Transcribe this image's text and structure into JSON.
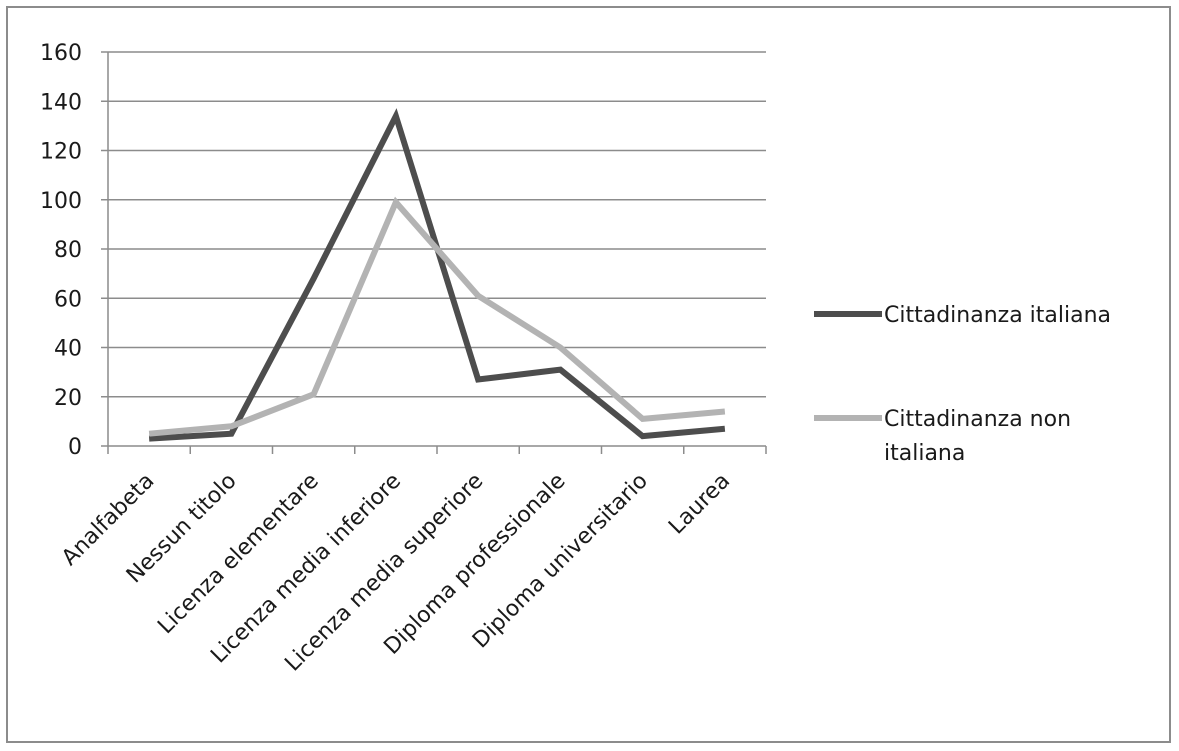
{
  "chart_data": {
    "type": "line",
    "title": "",
    "xlabel": "",
    "ylabel": "",
    "categories": [
      "Analfabeta",
      "Nessun titolo",
      "Licenza elementare",
      "Licenza media inferiore",
      "Licenza media superiore",
      "Diploma professionale",
      "Diploma universitario",
      "Laurea"
    ],
    "ylim": [
      0,
      160
    ],
    "yticks": [
      0,
      20,
      40,
      60,
      80,
      100,
      120,
      140,
      160
    ],
    "grid": true,
    "legend_position": "right",
    "series": [
      {
        "name": "Cittadinanza italiana",
        "color": "#4d4d4d",
        "values": [
          3,
          5,
          68,
          134,
          27,
          31,
          4,
          7
        ]
      },
      {
        "name": "Cittadinanza non italiana",
        "color": "#b3b3b3",
        "values": [
          5,
          8,
          21,
          99,
          61,
          40,
          11,
          14
        ]
      }
    ],
    "legend": [
      {
        "lines": [
          "Cittadinanza italiana"
        ]
      },
      {
        "lines": [
          "Cittadinanza non",
          "italiana"
        ]
      }
    ]
  }
}
